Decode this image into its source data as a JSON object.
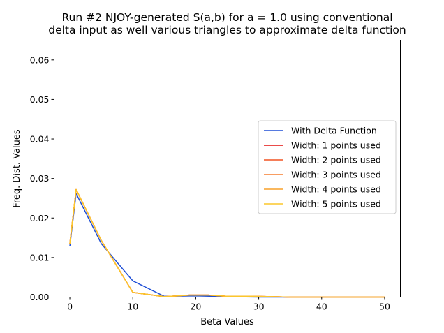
{
  "chart_data": {
    "type": "line",
    "title_lines": [
      "Run #2 NJOY-generated S(a,b) for a = 1.0 using conventional",
      "delta input as well various triangles to approximate delta function"
    ],
    "xlabel": "Beta Values",
    "ylabel": "Freq. Dist. Values",
    "xlim": [
      -2.5,
      52.5
    ],
    "ylim": [
      0.0,
      0.065
    ],
    "xticks": [
      0,
      10,
      20,
      30,
      40,
      50
    ],
    "xtick_labels": [
      "0",
      "10",
      "20",
      "30",
      "40",
      "50"
    ],
    "yticks": [
      0.0,
      0.01,
      0.02,
      0.03,
      0.04,
      0.05,
      0.06
    ],
    "ytick_labels": [
      "0.00",
      "0.01",
      "0.02",
      "0.03",
      "0.04",
      "0.05",
      "0.06"
    ],
    "grid": false,
    "legend_position": "center-right",
    "series": [
      {
        "name": "With Delta Function",
        "color": "#1f4fd6",
        "x": [
          0,
          1,
          5,
          10,
          15,
          20,
          25,
          30,
          35,
          40,
          45,
          50
        ],
        "y": [
          0.0129,
          0.0262,
          0.0135,
          0.0041,
          0.0002,
          0.0003,
          0.0001,
          0.0,
          0.0,
          0.0,
          0.0,
          0.0
        ]
      },
      {
        "name": "Width: 1 points used",
        "color": "#e3100f",
        "x": [
          0,
          1,
          5,
          10,
          15,
          19,
          22,
          25,
          29,
          32,
          35,
          40,
          45,
          50
        ],
        "y": [
          0.0135,
          0.0272,
          0.0143,
          0.0012,
          0.0001,
          0.0005,
          0.0005,
          0.0002,
          0.0002,
          0.0001,
          0.0,
          0.0,
          0.0,
          0.0
        ]
      },
      {
        "name": "Width: 2 points used",
        "color": "#f25322",
        "x": [
          0,
          1,
          5,
          10,
          15,
          19,
          22,
          25,
          29,
          32,
          35,
          40,
          45,
          50
        ],
        "y": [
          0.0135,
          0.0272,
          0.0143,
          0.0012,
          0.0001,
          0.0005,
          0.0005,
          0.0002,
          0.0002,
          0.0001,
          0.0,
          0.0,
          0.0,
          0.0
        ]
      },
      {
        "name": "Width: 3 points used",
        "color": "#f57d2e",
        "x": [
          0,
          1,
          5,
          10,
          15,
          19,
          22,
          25,
          29,
          32,
          35,
          40,
          45,
          50
        ],
        "y": [
          0.0135,
          0.0272,
          0.0143,
          0.0012,
          0.0001,
          0.0005,
          0.0005,
          0.0002,
          0.0002,
          0.0001,
          0.0,
          0.0,
          0.0,
          0.0
        ]
      },
      {
        "name": "Width: 4 points used",
        "color": "#f8a029",
        "x": [
          0,
          1,
          5,
          10,
          15,
          19,
          22,
          25,
          29,
          32,
          35,
          40,
          45,
          50
        ],
        "y": [
          0.0135,
          0.0272,
          0.0143,
          0.0012,
          0.0001,
          0.0005,
          0.0005,
          0.0002,
          0.0002,
          0.0001,
          0.0,
          0.0,
          0.0,
          0.0
        ]
      },
      {
        "name": "Width: 5 points used",
        "color": "#fbc72c",
        "x": [
          0,
          1,
          5,
          10,
          15,
          19,
          22,
          25,
          29,
          32,
          35,
          40,
          45,
          50
        ],
        "y": [
          0.0135,
          0.0272,
          0.0143,
          0.0012,
          0.0001,
          0.0005,
          0.0005,
          0.0002,
          0.0002,
          0.0001,
          0.0,
          0.0,
          0.0,
          0.0
        ]
      }
    ]
  }
}
